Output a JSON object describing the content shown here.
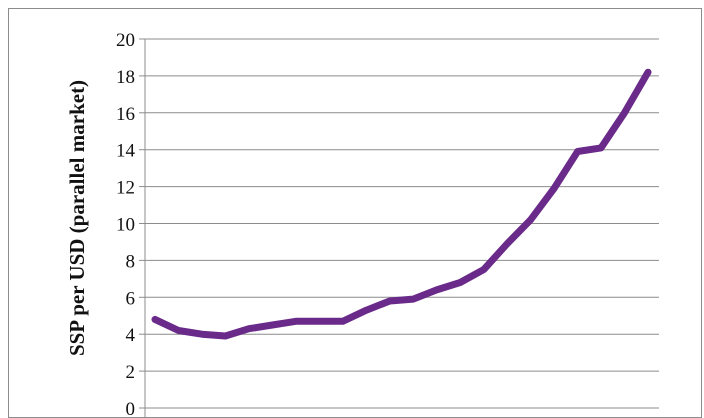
{
  "chart_data": {
    "type": "line",
    "ylabel": "SSP per USD (parallel market)",
    "xlabel": "",
    "ylim": [
      0,
      20
    ],
    "yticks": [
      0,
      2,
      4,
      6,
      8,
      10,
      12,
      14,
      16,
      18,
      20
    ],
    "grid": true,
    "series": [
      {
        "color": "#6a2a8a",
        "values": [
          4.8,
          4.2,
          4.0,
          3.9,
          4.3,
          4.5,
          4.7,
          4.7,
          4.7,
          5.3,
          5.8,
          5.9,
          6.4,
          6.8,
          7.5,
          8.9,
          10.2,
          11.9,
          13.9,
          14.1,
          16.0,
          18.2
        ]
      }
    ]
  }
}
